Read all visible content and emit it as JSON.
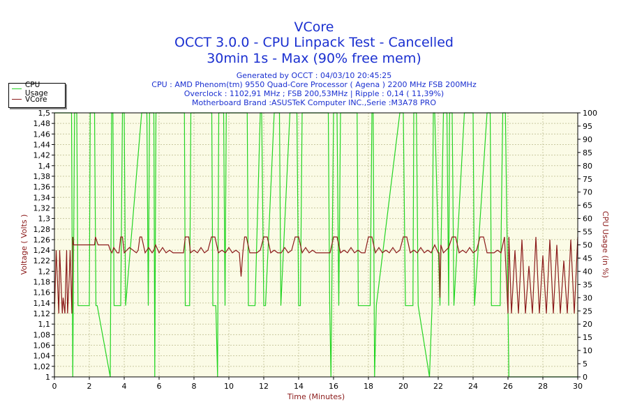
{
  "header": {
    "title": "VCore",
    "subtitle1": "OCCT 3.0.0 - CPU Linpack Test - Cancelled",
    "subtitle2": "30min 1s - Max (90% free mem)"
  },
  "info": {
    "generated": "Generated by OCCT : 04/03/10 20:45:25",
    "cpu": "CPU : AMD Phenom(tm) 9550 Quad-Core Processor ( Agena ) 2200 MHz FSB 200MHz",
    "overclock": "Overclock : 1102,91 MHz ; FSB 200,53MHz | Ripple : 0,14 ( 11,39%)",
    "motherboard": "Motherboard Brand :ASUSTeK Computer INC.,Serie :M3A78 PRO"
  },
  "legend": {
    "items": [
      {
        "label": "CPU Usage",
        "color": "#22d422"
      },
      {
        "label": "VCore",
        "color": "#8b1a1a"
      }
    ]
  },
  "colors": {
    "plot_bg": "#fbfbe6",
    "grid": "#c8c8a0",
    "cpu_usage": "#22d422",
    "vcore": "#8b1a1a",
    "axis_label": "#8b1a1a",
    "title": "#1a2fd0"
  },
  "chart_data": {
    "type": "line",
    "title": "VCore",
    "xlabel": "Time (Minutes)",
    "ylabel": "Voltage ( Volts )",
    "y2label": "CPU Usage (in %)",
    "xlim": [
      0,
      30
    ],
    "ylim": [
      1,
      1.5
    ],
    "y2lim": [
      0,
      100
    ],
    "grid": true,
    "legend_position": "top-left",
    "x_ticks": [
      "0",
      "2",
      "4",
      "6",
      "8",
      "10",
      "12",
      "14",
      "16",
      "18",
      "20",
      "22",
      "24",
      "26",
      "28",
      "30"
    ],
    "y_ticks": [
      "1",
      "1,02",
      "1,04",
      "1,06",
      "1,08",
      "1,1",
      "1,12",
      "1,14",
      "1,16",
      "1,18",
      "1,2",
      "1,22",
      "1,24",
      "1,26",
      "1,28",
      "1,3",
      "1,32",
      "1,34",
      "1,36",
      "1,38",
      "1,4",
      "1,42",
      "1,44",
      "1,46",
      "1,48",
      "1,5"
    ],
    "y2_ticks": [
      "0",
      "5",
      "10",
      "15",
      "20",
      "25",
      "30",
      "35",
      "40",
      "45",
      "50",
      "55",
      "60",
      "65",
      "70",
      "75",
      "80",
      "85",
      "90",
      "95",
      "100"
    ],
    "series": [
      {
        "name": "CPU Usage",
        "axis": "right",
        "x": [
          0,
          0.98,
          1.05,
          1.15,
          1.2,
          1.28,
          1.35,
          1.5,
          2.0,
          2.05,
          2.2,
          2.3,
          2.38,
          2.45,
          3.2,
          3.28,
          3.35,
          3.42,
          3.5,
          3.62,
          3.8,
          3.9,
          4.0,
          4.08,
          5.0,
          5.08,
          5.3,
          5.38,
          5.45,
          5.6,
          5.7,
          5.75,
          5.82,
          6.0,
          7.45,
          7.5,
          7.58,
          7.75,
          7.82,
          7.9,
          8.5,
          9.02,
          9.08,
          9.25,
          9.35,
          9.42,
          9.7,
          9.78,
          9.85,
          10.6,
          10.9,
          11.05,
          11.12,
          11.2,
          11.5,
          11.8,
          11.88,
          12.0,
          12.1,
          12.6,
          12.75,
          12.9,
          12.98,
          13.5,
          13.9,
          14.0,
          14.1,
          14.2,
          15.6,
          15.7,
          15.78,
          15.85,
          16.0,
          16.2,
          16.3,
          16.4,
          17.0,
          17.25,
          17.35,
          17.42,
          18.1,
          18.2,
          18.27,
          18.35,
          18.45,
          19.8,
          19.92,
          20.0,
          20.12,
          20.55,
          20.6,
          20.65,
          20.75,
          20.85,
          21.5,
          21.65,
          21.72,
          21.8,
          22.1,
          22.3,
          22.4,
          22.5,
          22.6,
          22.65,
          22.72,
          22.8,
          22.9,
          23.5,
          23.9,
          24.0,
          24.08,
          24.8,
          24.9,
          24.98,
          25.05,
          25.55,
          25.7,
          25.8,
          25.85,
          26.0,
          26.05,
          26.1,
          30
        ],
        "values": [
          100,
          100,
          0,
          100,
          100,
          100,
          27,
          27,
          27,
          100,
          100,
          100,
          27,
          27,
          0,
          100,
          100,
          27,
          27,
          27,
          27,
          100,
          100,
          27,
          100,
          100,
          100,
          27,
          100,
          100,
          100,
          0,
          100,
          100,
          100,
          27,
          27,
          27,
          100,
          100,
          100,
          100,
          27,
          27,
          0,
          100,
          100,
          27,
          100,
          100,
          100,
          100,
          27,
          27,
          27,
          100,
          100,
          27,
          27,
          100,
          100,
          100,
          27,
          100,
          100,
          27,
          27,
          100,
          100,
          100,
          27,
          0,
          100,
          100,
          27,
          100,
          100,
          100,
          100,
          27,
          27,
          100,
          100,
          0,
          27,
          100,
          100,
          100,
          27,
          27,
          100,
          100,
          100,
          27,
          0,
          27,
          100,
          100,
          27,
          100,
          100,
          100,
          27,
          100,
          100,
          100,
          27,
          100,
          100,
          100,
          27,
          100,
          100,
          100,
          27,
          27,
          100,
          100,
          100,
          27,
          0,
          0,
          0
        ]
      },
      {
        "name": "VCore",
        "axis": "left",
        "x": [
          0,
          0.1,
          0.25,
          0.3,
          0.45,
          0.5,
          0.6,
          0.7,
          0.75,
          0.85,
          0.9,
          1.0,
          1.05,
          1.1,
          1.15,
          1.3,
          2.3,
          2.35,
          2.5,
          3.1,
          3.2,
          3.3,
          3.4,
          3.6,
          3.7,
          3.8,
          3.9,
          4.0,
          4.3,
          4.7,
          4.8,
          4.9,
          5.0,
          5.2,
          5.4,
          5.6,
          5.7,
          5.8,
          6.0,
          6.2,
          6.4,
          6.6,
          6.8,
          7.0,
          7.4,
          7.5,
          7.7,
          7.8,
          8.0,
          8.2,
          8.4,
          8.6,
          8.8,
          9.0,
          9.2,
          9.4,
          9.6,
          9.8,
          10.0,
          10.2,
          10.4,
          10.6,
          10.7,
          10.8,
          10.9,
          11.0,
          11.2,
          11.6,
          11.8,
          12.0,
          12.2,
          12.4,
          12.6,
          12.8,
          13.0,
          13.2,
          13.4,
          13.6,
          13.8,
          14.0,
          14.2,
          14.4,
          14.6,
          14.8,
          15.0,
          15.4,
          15.8,
          16.0,
          16.2,
          16.4,
          16.6,
          16.8,
          17.0,
          17.2,
          17.4,
          17.6,
          17.8,
          18.0,
          18.2,
          18.4,
          18.6,
          18.8,
          19.0,
          19.2,
          19.4,
          19.6,
          19.8,
          20.0,
          20.2,
          20.4,
          20.6,
          20.8,
          21.0,
          21.2,
          21.4,
          21.6,
          21.8,
          22.0,
          22.05,
          22.1,
          22.15,
          22.3,
          22.6,
          22.8,
          23.0,
          23.2,
          23.4,
          23.6,
          23.8,
          24.0,
          24.2,
          24.4,
          24.6,
          24.8,
          25.0,
          25.2,
          25.4,
          25.6,
          25.8,
          26.0,
          26.05,
          26.2,
          26.4,
          26.6,
          26.8,
          27.0,
          27.2,
          27.4,
          27.6,
          27.8,
          28.0,
          28.2,
          28.4,
          28.6,
          28.8,
          29.0,
          29.2,
          29.4,
          29.6,
          29.8,
          30.0
        ],
        "values": [
          1.12,
          1.24,
          1.12,
          1.24,
          1.12,
          1.15,
          1.12,
          1.24,
          1.12,
          1.19,
          1.24,
          1.12,
          1.265,
          1.25,
          1.25,
          1.25,
          1.25,
          1.265,
          1.25,
          1.25,
          1.24,
          1.235,
          1.245,
          1.235,
          1.235,
          1.265,
          1.265,
          1.235,
          1.245,
          1.235,
          1.24,
          1.265,
          1.265,
          1.235,
          1.245,
          1.235,
          1.24,
          1.25,
          1.235,
          1.245,
          1.235,
          1.24,
          1.235,
          1.235,
          1.235,
          1.265,
          1.265,
          1.235,
          1.24,
          1.235,
          1.245,
          1.235,
          1.24,
          1.265,
          1.265,
          1.235,
          1.24,
          1.235,
          1.245,
          1.235,
          1.24,
          1.235,
          1.19,
          1.235,
          1.265,
          1.265,
          1.235,
          1.235,
          1.24,
          1.265,
          1.265,
          1.235,
          1.24,
          1.235,
          1.235,
          1.245,
          1.235,
          1.24,
          1.265,
          1.265,
          1.235,
          1.245,
          1.235,
          1.24,
          1.235,
          1.235,
          1.235,
          1.265,
          1.265,
          1.235,
          1.24,
          1.235,
          1.245,
          1.235,
          1.24,
          1.235,
          1.235,
          1.265,
          1.265,
          1.235,
          1.245,
          1.235,
          1.24,
          1.235,
          1.245,
          1.235,
          1.24,
          1.265,
          1.265,
          1.235,
          1.24,
          1.235,
          1.245,
          1.235,
          1.24,
          1.235,
          1.25,
          1.235,
          1.235,
          1.15,
          1.25,
          1.235,
          1.245,
          1.265,
          1.265,
          1.235,
          1.24,
          1.235,
          1.245,
          1.235,
          1.24,
          1.265,
          1.265,
          1.235,
          1.235,
          1.235,
          1.24,
          1.235,
          1.265,
          1.12,
          1.265,
          1.12,
          1.24,
          1.12,
          1.26,
          1.12,
          1.21,
          1.12,
          1.265,
          1.12,
          1.23,
          1.12,
          1.26,
          1.12,
          1.25,
          1.12,
          1.22,
          1.12,
          1.26,
          1.12,
          1.265
        ]
      }
    ]
  }
}
